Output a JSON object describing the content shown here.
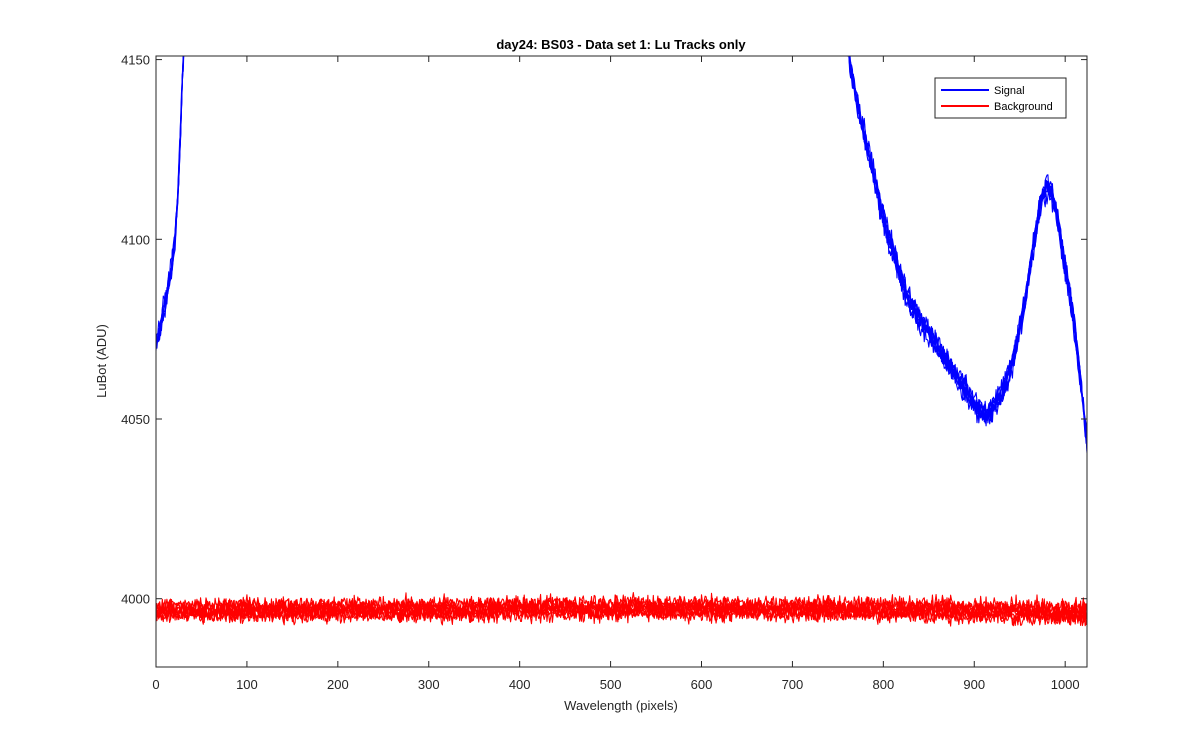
{
  "chart_data": {
    "type": "line",
    "title": "day24: BS03 - Data set 1: Lu Tracks only",
    "xlabel": "Wavelength (pixels)",
    "ylabel": "LuBot (ADU)",
    "xlim": [
      0,
      1024
    ],
    "ylim": [
      3981,
      4151
    ],
    "x_ticks": [
      0,
      100,
      200,
      300,
      400,
      500,
      600,
      700,
      800,
      900,
      1000
    ],
    "y_ticks": [
      4000,
      4050,
      4100,
      4150
    ],
    "grid": false,
    "legend_position": "top-right",
    "series": [
      {
        "name": "Signal",
        "color": "#0000ff",
        "traces": 8,
        "noise": 2.2,
        "x": [
          0,
          3,
          6,
          9,
          12,
          15,
          18,
          21,
          24,
          27,
          29,
          31,
          35,
          40,
          760,
          763,
          766,
          770,
          775,
          780,
          785,
          790,
          795,
          800,
          805,
          810,
          815,
          820,
          825,
          830,
          835,
          840,
          845,
          850,
          855,
          860,
          865,
          870,
          875,
          880,
          885,
          890,
          895,
          900,
          905,
          910,
          915,
          920,
          925,
          930,
          935,
          940,
          945,
          950,
          955,
          960,
          965,
          970,
          975,
          980,
          985,
          990,
          995,
          1000,
          1005,
          1010,
          1015,
          1020,
          1024
        ],
        "y": [
          4071,
          4073,
          4077,
          4081,
          4085,
          4089,
          4094,
          4101,
          4112,
          4130,
          4145,
          4156,
          4175,
          4200,
          4156,
          4150,
          4145,
          4140,
          4134,
          4128,
          4123,
          4117,
          4111,
          4106,
          4101,
          4097,
          4093,
          4089,
          4085,
          4082,
          4080,
          4078,
          4076,
          4074,
          4072,
          4070,
          4068,
          4066,
          4064,
          4062,
          4060,
          4058,
          4056,
          4054,
          4053,
          4052,
          4051,
          4053,
          4055,
          4057,
          4060,
          4064,
          4069,
          4075,
          4082,
          4090,
          4098,
          4106,
          4112,
          4115,
          4113,
          4108,
          4100,
          4092,
          4085,
          4076,
          4065,
          4053,
          4043
        ]
      },
      {
        "name": "Background",
        "color": "#ff0000",
        "traces": 8,
        "noise": 2.0,
        "x": [
          0,
          100,
          200,
          300,
          400,
          500,
          600,
          700,
          800,
          900,
          1000,
          1024
        ],
        "y": [
          3996.5,
          3996.8,
          3996.9,
          3997.0,
          3997.2,
          3997.3,
          3997.3,
          3997.2,
          3997.0,
          3996.6,
          3996.2,
          3996.0
        ]
      }
    ]
  }
}
